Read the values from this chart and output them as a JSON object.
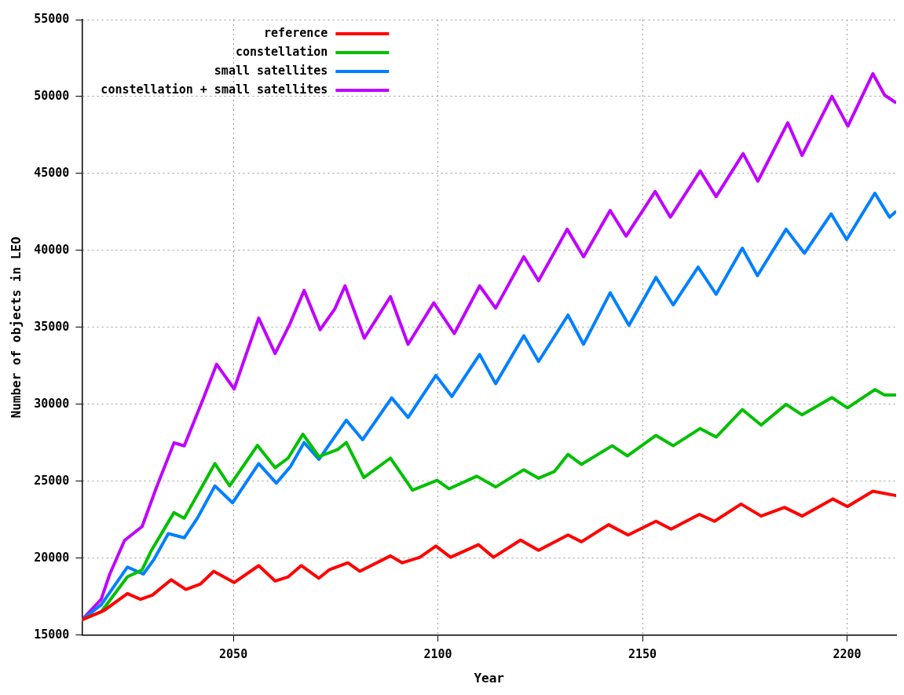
{
  "chart_data": {
    "type": "line",
    "xlabel": "Year",
    "ylabel": "Number of objects in LEO",
    "xlim": [
      2013,
      2212
    ],
    "xticks": [
      2050,
      2100,
      2150,
      2200
    ],
    "ylim": [
      15000,
      55000
    ],
    "yticks": [
      15000,
      20000,
      25000,
      30000,
      35000,
      40000,
      45000,
      50000,
      55000
    ],
    "grid": true,
    "legend": "top",
    "marker": "none",
    "line_style": "solid",
    "series": [
      {
        "name": "reference",
        "color": "#ff0000",
        "x": [
          2013,
          2018.4,
          2024.1,
          2027.3,
          2030.2,
          2034.8,
          2038.4,
          2042,
          2045.2,
          2050.2,
          2056.2,
          2060.2,
          2063.4,
          2066.6,
          2070.9,
          2073.4,
          2078,
          2080.9,
          2088.4,
          2091.3,
          2095.6,
          2099.5,
          2103.1,
          2109.9,
          2113.6,
          2120.2,
          2124.6,
          2131.8,
          2135.1,
          2141.7,
          2146.5,
          2153.3,
          2157,
          2163.9,
          2167.6,
          2174.1,
          2179,
          2184.7,
          2189,
          2196.5,
          2200.1,
          2206.3,
          2211.8
        ],
        "values": [
          16000,
          16600,
          17700,
          17330,
          17600,
          18600,
          17970,
          18330,
          19150,
          18420,
          19520,
          18520,
          18790,
          19520,
          18700,
          19240,
          19700,
          19150,
          20150,
          19700,
          20060,
          20790,
          20060,
          20880,
          20060,
          21180,
          20510,
          21510,
          21070,
          22180,
          21510,
          22400,
          21890,
          22850,
          22400,
          23520,
          22740,
          23300,
          22740,
          23850,
          23360,
          24350,
          24080
        ]
      },
      {
        "name": "constellation",
        "color": "#00c000",
        "x": [
          2013,
          2017.7,
          2024.1,
          2027.7,
          2029.8,
          2035.5,
          2038,
          2045.5,
          2049.1,
          2055.9,
          2060.2,
          2063.4,
          2067,
          2070.9,
          2075.5,
          2077.6,
          2081.9,
          2088.4,
          2093.8,
          2099.8,
          2102.7,
          2109.5,
          2114.1,
          2121,
          2124.6,
          2128.5,
          2131.8,
          2135.1,
          2142.6,
          2146.3,
          2153.3,
          2157.5,
          2164.1,
          2168,
          2174.4,
          2179,
          2185.1,
          2189,
          2196.3,
          2200.1,
          2206.8,
          2209.2,
          2211.8
        ],
        "values": [
          16000,
          16510,
          18790,
          19240,
          20420,
          22970,
          22600,
          26150,
          24700,
          27330,
          25880,
          26510,
          28060,
          26600,
          27060,
          27520,
          25240,
          26510,
          24420,
          25060,
          24510,
          25330,
          24630,
          25750,
          25200,
          25640,
          26750,
          26100,
          27310,
          26650,
          27980,
          27310,
          28430,
          27870,
          29660,
          28650,
          30000,
          29320,
          30440,
          29770,
          30960,
          30600,
          30600
        ]
      },
      {
        "name": "small satellites",
        "color": "#0080ff",
        "x": [
          2013,
          2017.7,
          2024.1,
          2028,
          2030.5,
          2034.1,
          2038,
          2041.2,
          2045.5,
          2049.8,
          2056.2,
          2060.5,
          2064,
          2067.3,
          2070.9,
          2077.6,
          2081.6,
          2088.7,
          2092.7,
          2099.5,
          2103.4,
          2110.2,
          2114.1,
          2121,
          2124.6,
          2131.8,
          2135.6,
          2142.1,
          2146.7,
          2153.3,
          2157.5,
          2163.6,
          2168,
          2174.4,
          2178.1,
          2185.1,
          2189.6,
          2196.1,
          2199.9,
          2206.8,
          2210.4,
          2211.8
        ],
        "values": [
          16000,
          16970,
          19420,
          18970,
          19880,
          21600,
          21330,
          22600,
          24700,
          23600,
          26150,
          24880,
          25970,
          27520,
          26420,
          28970,
          27700,
          30420,
          29150,
          31880,
          30510,
          33240,
          31340,
          34460,
          32790,
          35800,
          33900,
          37250,
          35130,
          38250,
          36460,
          38920,
          37150,
          40150,
          38360,
          41380,
          39820,
          42380,
          40710,
          43720,
          42160,
          42500
        ]
      },
      {
        "name": "constellation + small satellites",
        "color": "#c000ff",
        "x": [
          2013,
          2017.7,
          2019.8,
          2023.4,
          2025.5,
          2027.7,
          2031.2,
          2035.5,
          2038,
          2042.7,
          2045.9,
          2050.2,
          2056.2,
          2060.2,
          2063.7,
          2067.3,
          2071.2,
          2074.8,
          2077.3,
          2082,
          2088.4,
          2092.7,
          2099,
          2104,
          2110.2,
          2114.1,
          2121,
          2124.6,
          2131.6,
          2135.6,
          2142.1,
          2146,
          2153.1,
          2156.8,
          2164.1,
          2168,
          2174.6,
          2178.2,
          2185.5,
          2189,
          2196.3,
          2200.2,
          2206.3,
          2209.2,
          2211.8
        ],
        "values": [
          16000,
          17330,
          18970,
          21150,
          21600,
          22060,
          24600,
          27500,
          27300,
          30400,
          32600,
          31000,
          35600,
          33300,
          35150,
          37400,
          34850,
          36200,
          37700,
          34300,
          37000,
          33900,
          36600,
          34600,
          37700,
          36250,
          39590,
          38030,
          41380,
          39590,
          42600,
          40930,
          43830,
          42160,
          45170,
          43500,
          46290,
          44500,
          48300,
          46180,
          50020,
          48080,
          51490,
          50090,
          49630
        ]
      }
    ]
  }
}
